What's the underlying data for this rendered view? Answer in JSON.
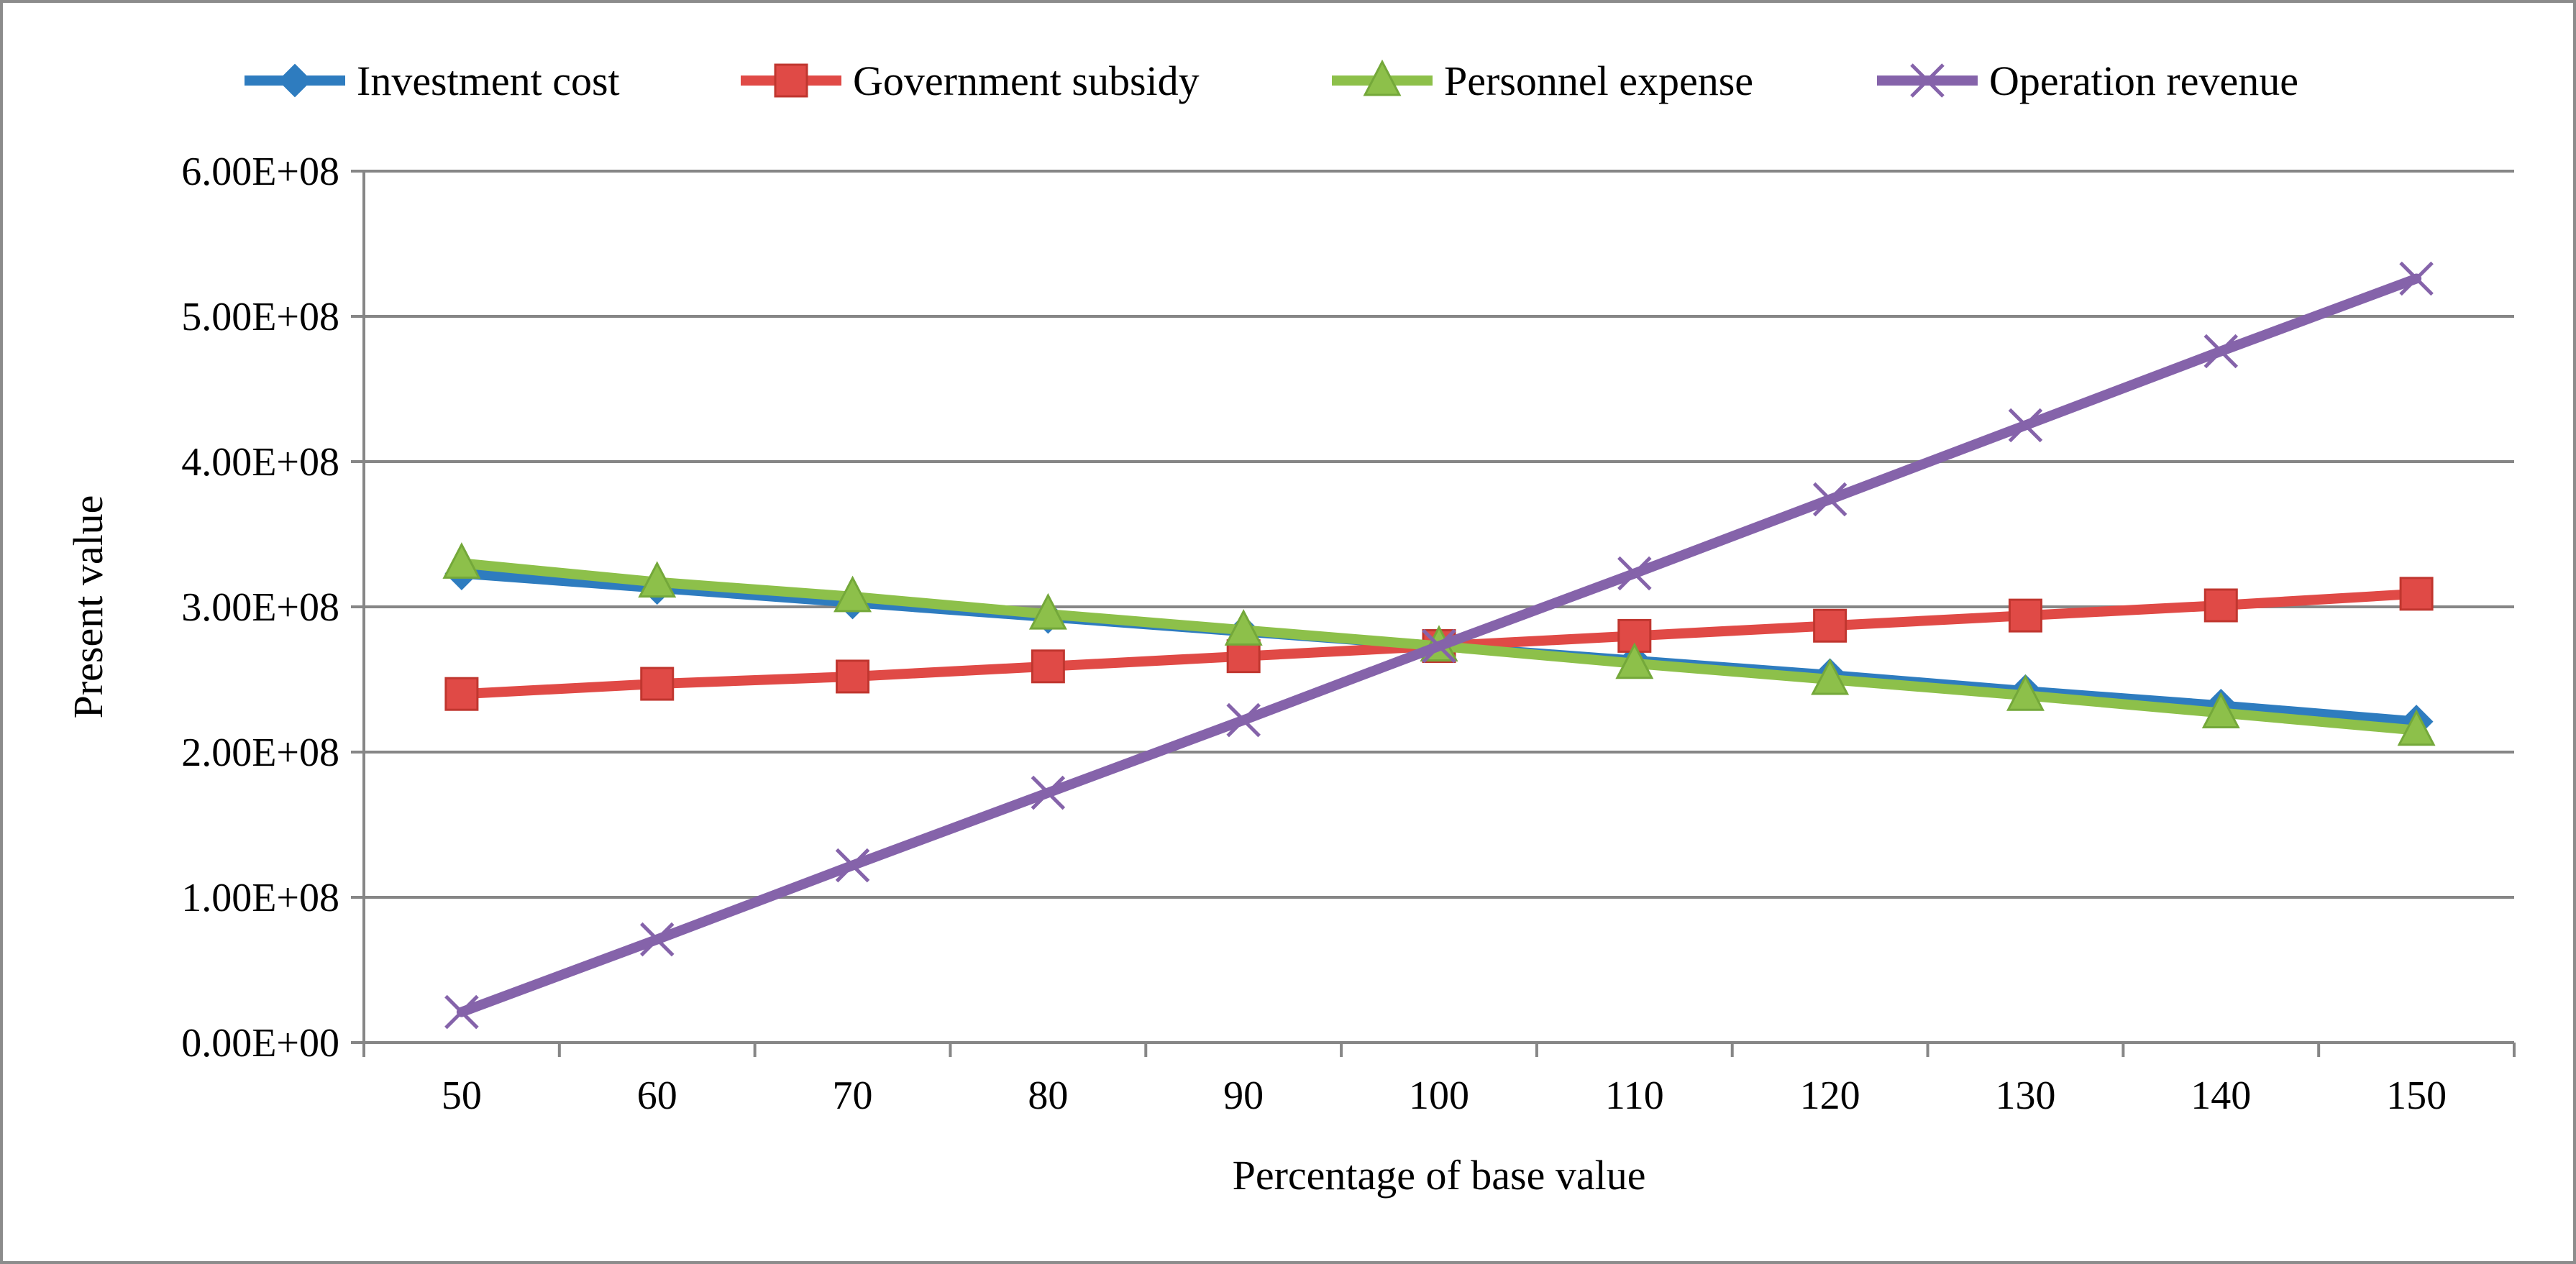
{
  "chart_data": {
    "type": "line",
    "title": "",
    "xlabel": "Percentage of base value",
    "ylabel": "Present value",
    "categories": [
      "50",
      "60",
      "70",
      "80",
      "90",
      "100",
      "110",
      "120",
      "130",
      "140",
      "150"
    ],
    "x": [
      50,
      60,
      70,
      80,
      90,
      100,
      110,
      120,
      130,
      140,
      150
    ],
    "ylim": [
      0,
      600000000
    ],
    "yticks": [
      0,
      100000000,
      200000000,
      300000000,
      400000000,
      500000000,
      600000000
    ],
    "ytick_labels": [
      "0.00E+00",
      "1.00E+08",
      "2.00E+08",
      "3.00E+08",
      "4.00E+08",
      "5.00E+08",
      "6.00E+08"
    ],
    "grid": true,
    "legend_position": "top",
    "series": [
      {
        "name": "Investment cost",
        "color": "#2e7cbf",
        "marker": "diamond",
        "values": [
          323000000,
          313000000,
          303000000,
          293000000,
          283000000,
          273000000,
          263000000,
          253000000,
          242000000,
          232000000,
          221000000
        ]
      },
      {
        "name": "Government subsidy",
        "color": "#e04a46",
        "marker": "square",
        "values": [
          240000000,
          247000000,
          252000000,
          259000000,
          266000000,
          273000000,
          280000000,
          287000000,
          294000000,
          301000000,
          309000000
        ]
      },
      {
        "name": "Personnel expense",
        "color": "#8dc04a",
        "marker": "triangle",
        "values": [
          330000000,
          317000000,
          307000000,
          295000000,
          284000000,
          273000000,
          261000000,
          250000000,
          239000000,
          227000000,
          215000000
        ]
      },
      {
        "name": "Operation revenue",
        "color": "#8563aa",
        "marker": "x",
        "values": [
          21000000,
          71000000,
          122000000,
          172000000,
          222000000,
          273000000,
          323000000,
          374000000,
          425000000,
          476000000,
          526000000
        ]
      }
    ]
  }
}
